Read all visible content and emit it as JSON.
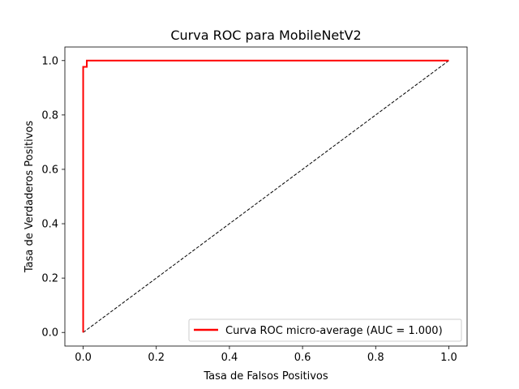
{
  "chart_data": {
    "type": "line",
    "title": "Curva ROC para MobileNetV2",
    "xlabel": "Tasa de Falsos Positivos",
    "ylabel": "Tasa de Verdaderos Positivos",
    "xlim": [
      -0.05,
      1.05
    ],
    "ylim": [
      -0.05,
      1.05
    ],
    "xticks": [
      0.0,
      0.2,
      0.4,
      0.6,
      0.8,
      1.0
    ],
    "xtick_labels": [
      "0.0",
      "0.2",
      "0.4",
      "0.6",
      "0.8",
      "1.0"
    ],
    "yticks": [
      0.0,
      0.2,
      0.4,
      0.6,
      0.8,
      1.0
    ],
    "ytick_labels": [
      "0.0",
      "0.2",
      "0.4",
      "0.6",
      "0.8",
      "1.0"
    ],
    "grid": false,
    "legend_position": "lower-right",
    "series": [
      {
        "name": "Curva ROC micro-average (AUC = 1.000)",
        "color": "#ff0000",
        "style": "solid",
        "x": [
          0.0,
          0.0,
          0.0,
          0.01,
          0.01,
          1.0
        ],
        "y": [
          0.0,
          0.977,
          0.977,
          0.977,
          1.0,
          1.0
        ]
      },
      {
        "color": "#000000",
        "style": "dashed",
        "x": [
          0.0,
          1.0
        ],
        "y": [
          0.0,
          1.0
        ]
      }
    ]
  }
}
